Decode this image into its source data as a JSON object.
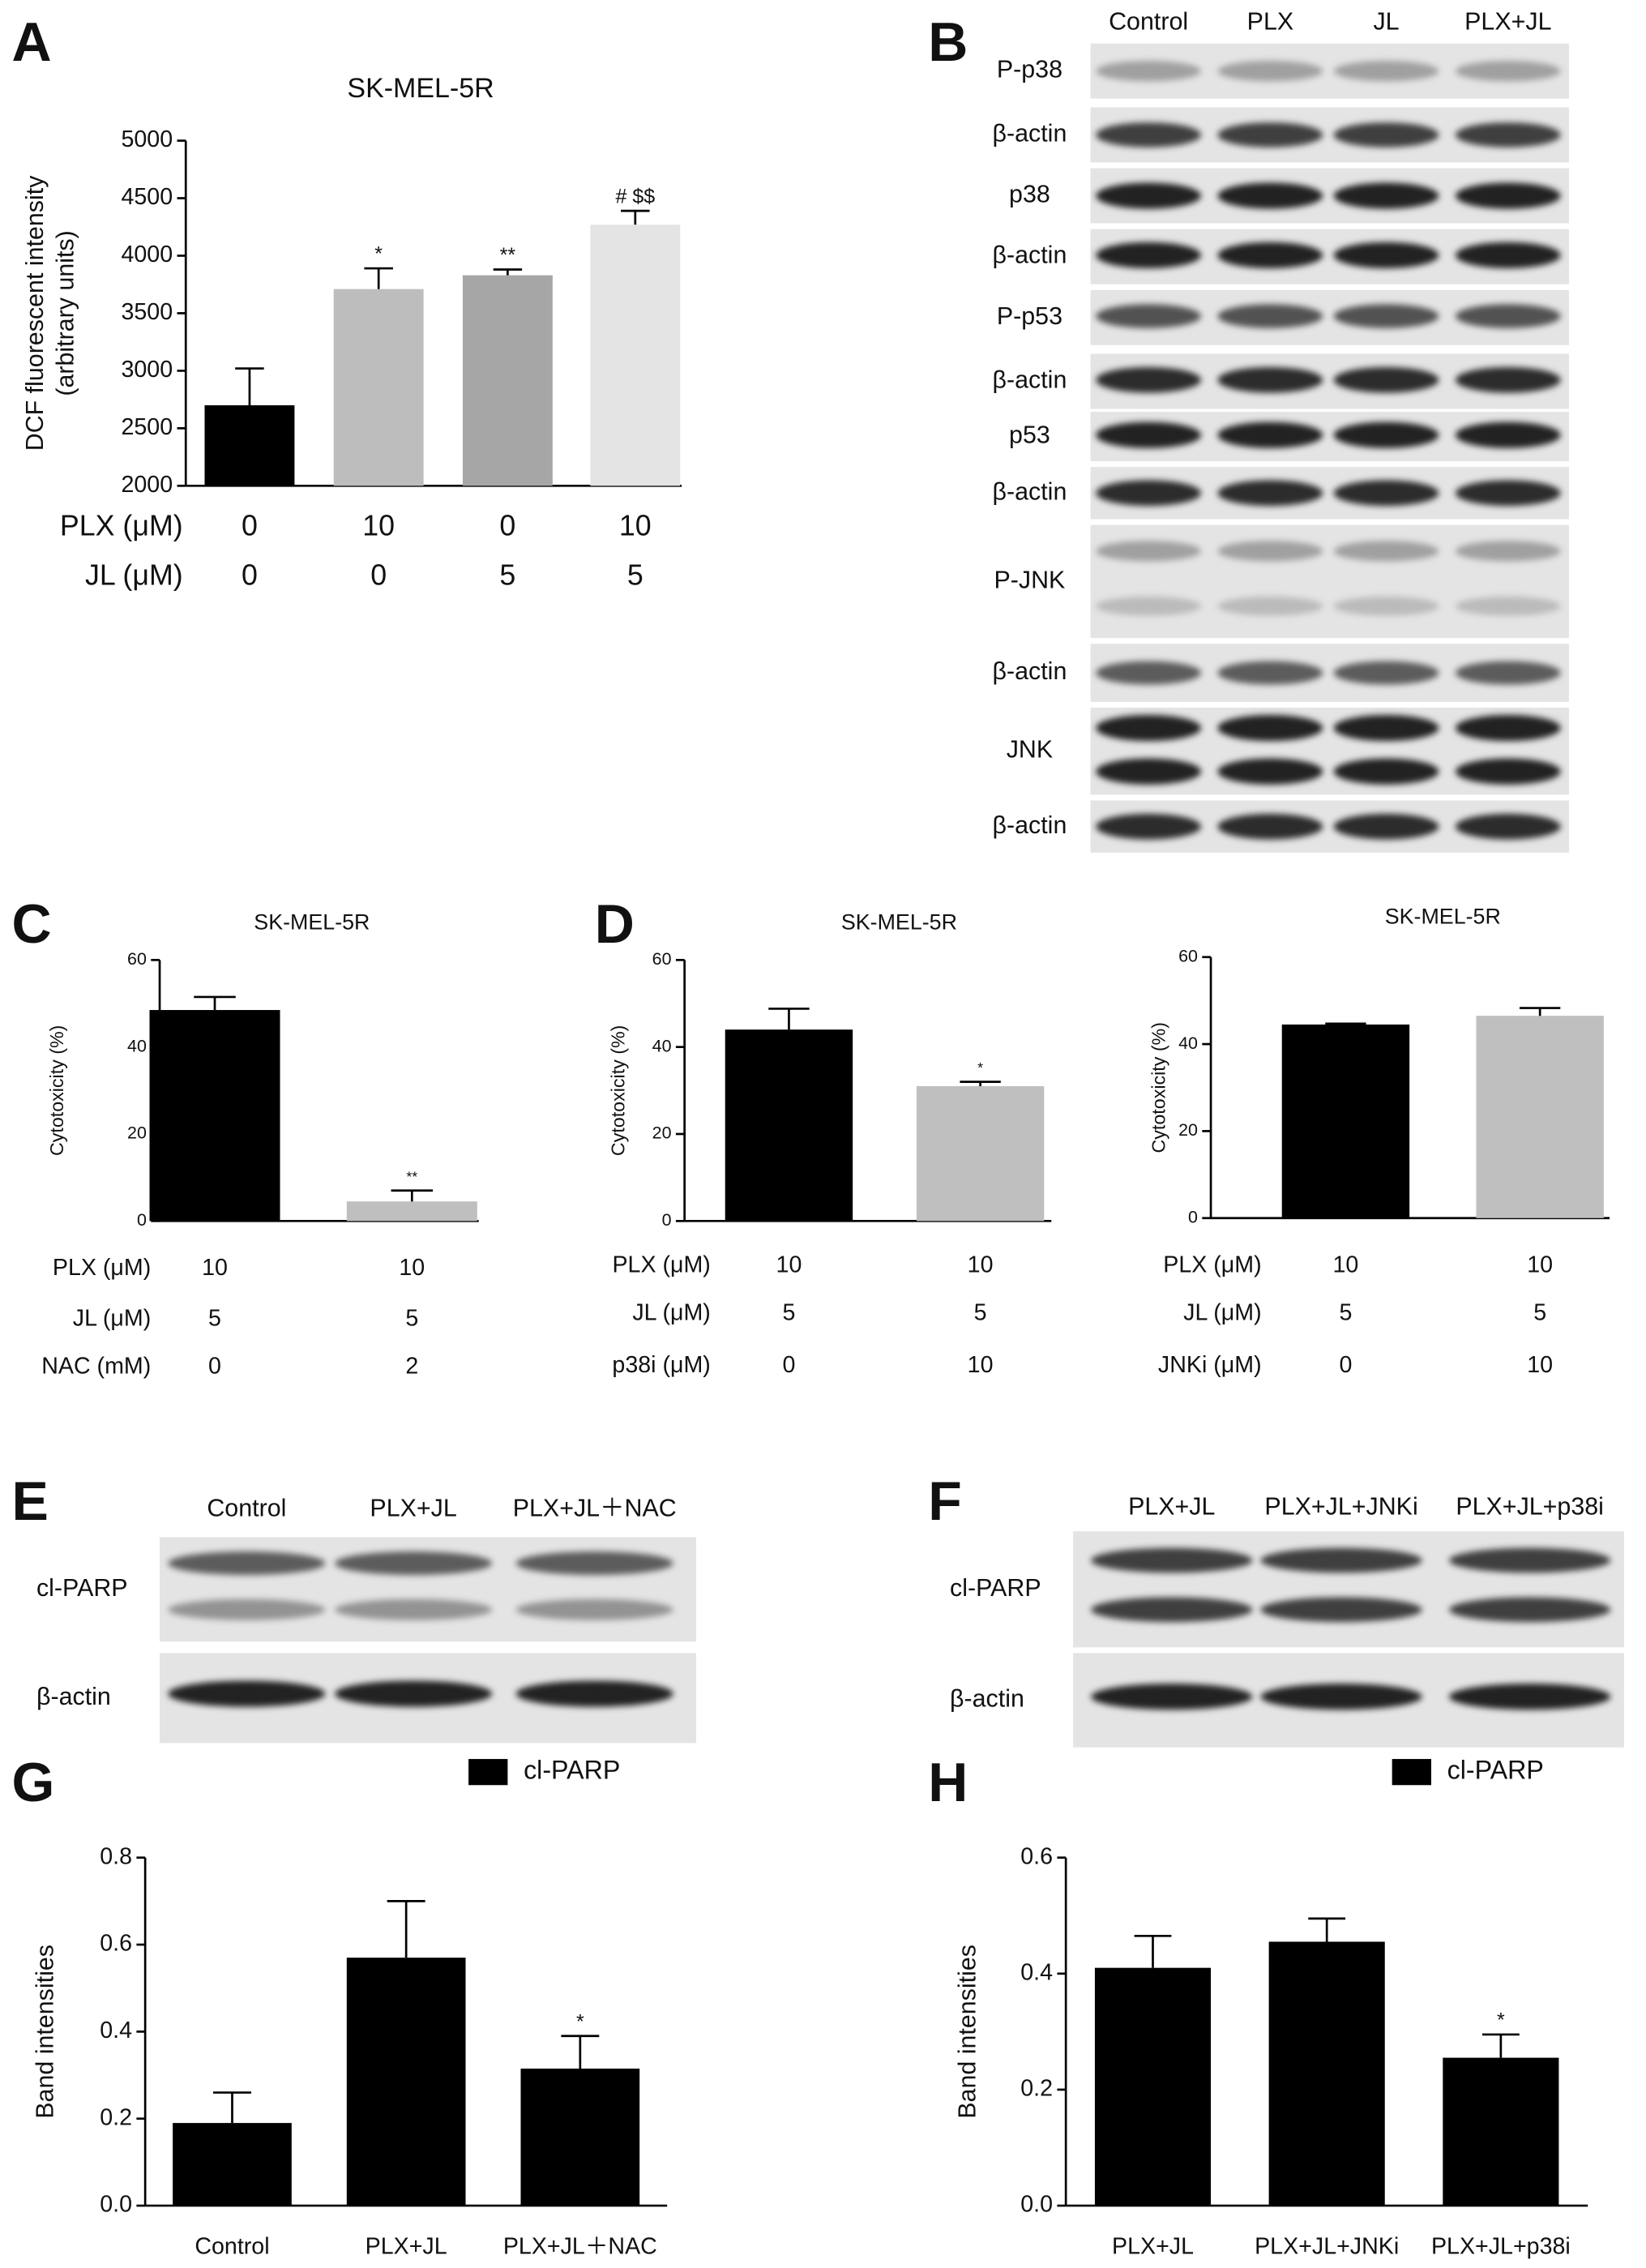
{
  "chart_data": [
    {
      "type": "bar",
      "panel": "A",
      "title": "SK-MEL-5R",
      "y_label": [
        "DCF fluorescent intensity",
        "(arbitrary units)"
      ],
      "values": [
        2700,
        3710,
        3830,
        4270
      ],
      "errors": [
        320,
        180,
        50,
        120
      ],
      "colors": [
        "#000000",
        "#bdbdbd",
        "#a6a6a6",
        "#e4e4e4"
      ],
      "significance": [
        null,
        "*",
        "**",
        "# $$"
      ],
      "ylim": [
        2000,
        5000
      ],
      "yticks": [
        2000,
        2500,
        3000,
        3500,
        4000,
        4500,
        5000
      ],
      "conditions": [
        {
          "label": "PLX (μM)",
          "values": [
            0,
            10,
            0,
            10
          ]
        },
        {
          "label": "JL (μM)",
          "values": [
            0,
            0,
            5,
            5
          ]
        }
      ]
    },
    {
      "type": "bar",
      "panel": "C",
      "title": "SK-MEL-5R",
      "y_label": [
        "Cytotoxicity (%)"
      ],
      "values": [
        48.5,
        4.5
      ],
      "errors": [
        3,
        2.5
      ],
      "colors": [
        "#000000",
        "#bfbfbf"
      ],
      "significance": [
        null,
        "**"
      ],
      "ylim": [
        0,
        60
      ],
      "yticks": [
        0,
        20,
        40,
        60
      ],
      "conditions": [
        {
          "label": "PLX (μM)",
          "values": [
            10,
            10
          ]
        },
        {
          "label": "JL (μM)",
          "values": [
            5,
            5
          ]
        },
        {
          "label": "NAC (mM)",
          "values": [
            0,
            2
          ]
        }
      ]
    },
    {
      "type": "bar",
      "panel": "D",
      "title": "SK-MEL-5R",
      "y_label": [
        "Cytotoxicity (%)"
      ],
      "values": [
        44,
        31
      ],
      "errors": [
        4.8,
        1
      ],
      "colors": [
        "#000000",
        "#bfbfbf"
      ],
      "significance": [
        null,
        "*"
      ],
      "ylim": [
        0,
        60
      ],
      "yticks": [
        0,
        20,
        40,
        60
      ],
      "conditions": [
        {
          "label": "PLX (μM)",
          "values": [
            10,
            10
          ]
        },
        {
          "label": "JL (μM)",
          "values": [
            5,
            5
          ]
        },
        {
          "label": "p38i (μM)",
          "values": [
            0,
            10
          ]
        }
      ]
    },
    {
      "type": "bar",
      "title": "SK-MEL-5R",
      "y_label": [
        "Cytotoxicity (%)"
      ],
      "values": [
        44.5,
        46.5
      ],
      "errors": [
        0.2,
        1.8
      ],
      "colors": [
        "#000000",
        "#bfbfbf"
      ],
      "ylim": [
        0,
        60
      ],
      "yticks": [
        0,
        20,
        40,
        60
      ],
      "conditions": [
        {
          "label": "PLX (μM)",
          "values": [
            10,
            10
          ]
        },
        {
          "label": "JL (μM)",
          "values": [
            5,
            5
          ]
        },
        {
          "label": "JNKi (μM)",
          "values": [
            0,
            10
          ]
        }
      ]
    },
    {
      "type": "bar",
      "panel": "G",
      "y_label": [
        "Band intensities"
      ],
      "legend_label": "cl-PARP",
      "categories": [
        "Control",
        "PLX+JL",
        "PLX+JL＋NAC"
      ],
      "values": [
        0.19,
        0.57,
        0.315
      ],
      "errors": [
        0.07,
        0.13,
        0.075
      ],
      "colors": [
        "#000000",
        "#000000",
        "#000000"
      ],
      "significance": [
        null,
        null,
        "*"
      ],
      "ylim": [
        0,
        0.8
      ],
      "yticks": [
        {
          "value": 0,
          "label": "0.0"
        },
        0.2,
        0.4,
        0.6,
        0.8
      ]
    },
    {
      "type": "bar",
      "panel": "H",
      "y_label": [
        "Band intensities"
      ],
      "legend_label": "cl-PARP",
      "categories": [
        "PLX+JL",
        "PLX+JL+JNKi",
        "PLX+JL+p38i"
      ],
      "values": [
        0.41,
        0.455,
        0.255
      ],
      "errors": [
        0.055,
        0.04,
        0.04
      ],
      "colors": [
        "#000000",
        "#000000",
        "#000000"
      ],
      "significance": [
        null,
        null,
        "*"
      ],
      "ylim": [
        0,
        0.6
      ],
      "yticks": [
        {
          "value": 0,
          "label": "0.0"
        },
        0.2,
        0.4,
        0.6
      ]
    }
  ],
  "blots": [
    {
      "panel": "B",
      "lanes": [
        "Control",
        "PLX",
        "JL",
        "PLX+JL"
      ],
      "rows": [
        "P-p38",
        "β-actin",
        "p38",
        "β-actin",
        "P-p53",
        "β-actin",
        "p53",
        "β-actin",
        "P-JNK",
        "β-actin",
        "JNK",
        "β-actin"
      ]
    },
    {
      "panel": "E",
      "lanes": [
        "Control",
        "PLX+JL",
        "PLX+JL＋NAC"
      ],
      "rows": [
        "cl-PARP",
        "β-actin"
      ]
    },
    {
      "panel": "F",
      "lanes": [
        "PLX+JL",
        "PLX+JL+JNKi",
        "PLX+JL+p38i"
      ],
      "rows": [
        "cl-PARP",
        "β-actin"
      ]
    }
  ]
}
